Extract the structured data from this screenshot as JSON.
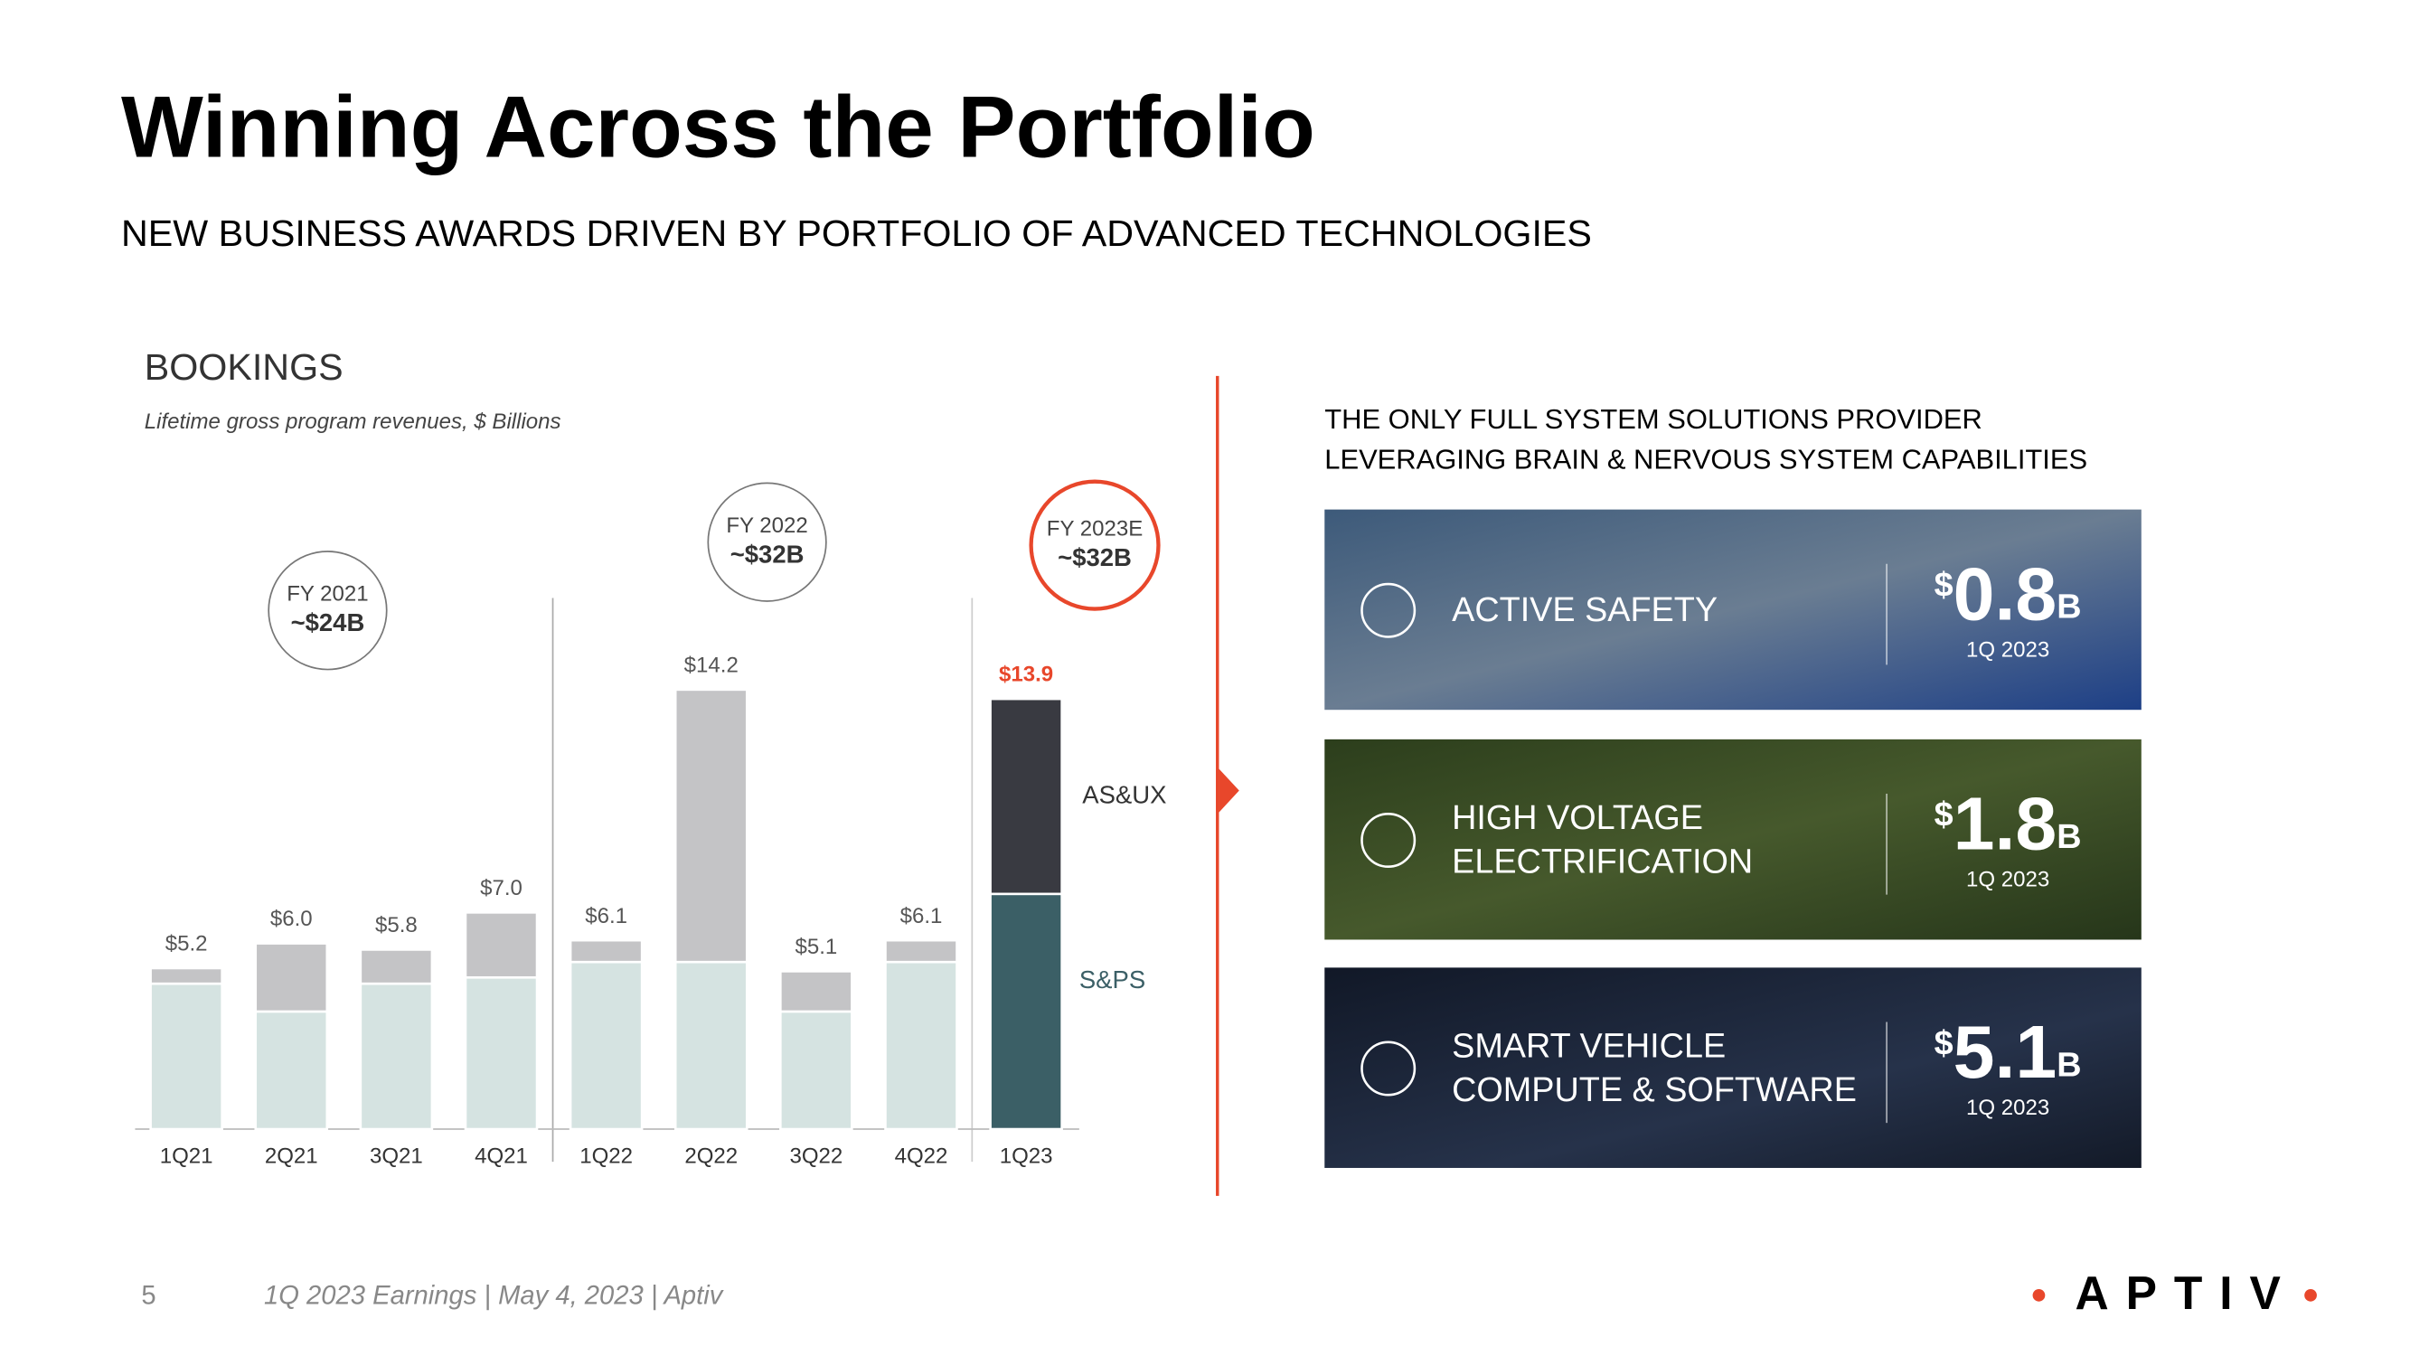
{
  "header": {
    "title": "Winning Across the Portfolio",
    "subtitle": "NEW BUSINESS AWARDS DRIVEN BY PORTFOLIO OF ADVANCED TECHNOLOGIES"
  },
  "chart_data": {
    "type": "bar",
    "stacked": true,
    "title": "BOOKINGS",
    "subtitle": "Lifetime gross program revenues, $ Billions",
    "categories": [
      "1Q21",
      "2Q21",
      "3Q21",
      "4Q21",
      "1Q22",
      "2Q22",
      "3Q22",
      "4Q22",
      "1Q23"
    ],
    "series": [
      {
        "name": "S&PS",
        "values": [
          4.7,
          3.8,
          4.7,
          4.9,
          5.4,
          5.4,
          3.8,
          5.4,
          7.6
        ],
        "colors": [
          "#d5e3e1",
          "#d5e3e1",
          "#d5e3e1",
          "#d5e3e1",
          "#d5e3e1",
          "#d5e3e1",
          "#d5e3e1",
          "#d5e3e1",
          "#3b5f66"
        ]
      },
      {
        "name": "AS&UX",
        "values": [
          0.5,
          2.2,
          1.1,
          2.1,
          0.7,
          8.8,
          1.3,
          0.7,
          6.3
        ],
        "colors": [
          "#c4c4c6",
          "#c4c4c6",
          "#c4c4c6",
          "#c4c4c6",
          "#c4c4c6",
          "#c4c4c6",
          "#c4c4c6",
          "#c4c4c6",
          "#393a41"
        ]
      }
    ],
    "totals": [
      5.2,
      6.0,
      5.8,
      7.0,
      6.1,
      14.2,
      5.1,
      6.1,
      13.9
    ],
    "value_labels": [
      "$5.2",
      "$6.0",
      "$5.8",
      "$7.0",
      "$6.1",
      "$14.2",
      "$5.1",
      "$6.1",
      "$13.9"
    ],
    "value_label_colors": [
      "#555",
      "#555",
      "#555",
      "#555",
      "#555",
      "#555",
      "#555",
      "#555",
      "#e8472b"
    ],
    "annotations": [
      {
        "label": "FY 2021",
        "value": "~$24B",
        "color": "#777"
      },
      {
        "label": "FY 2022",
        "value": "~$32B",
        "color": "#777"
      },
      {
        "label": "FY 2023E",
        "value": "~$32B",
        "color": "#e8472b"
      }
    ]
  },
  "panel": {
    "heading": [
      "THE ONLY FULL SYSTEM SOLUTIONS PROVIDER",
      "LEVERAGING BRAIN & NERVOUS SYSTEM CAPABILITIES"
    ],
    "cards": [
      {
        "title": [
          "ACTIVE SAFETY"
        ],
        "currency": "$",
        "amount": 0.8,
        "unit": "B",
        "period": "1Q 2023"
      },
      {
        "title": [
          "HIGH VOLTAGE",
          "ELECTRIFICATION"
        ],
        "currency": "$",
        "amount": 1.8,
        "unit": "B",
        "period": "1Q 2023"
      },
      {
        "title": [
          "SMART VEHICLE",
          "COMPUTE & SOFTWARE"
        ],
        "currency": "$",
        "amount": 5.1,
        "unit": "B",
        "period": "1Q 2023"
      }
    ]
  },
  "footer": {
    "page": "5",
    "text": "1Q 2023 Earnings | May 4, 2023 | Aptiv",
    "logo": "APTIV"
  }
}
